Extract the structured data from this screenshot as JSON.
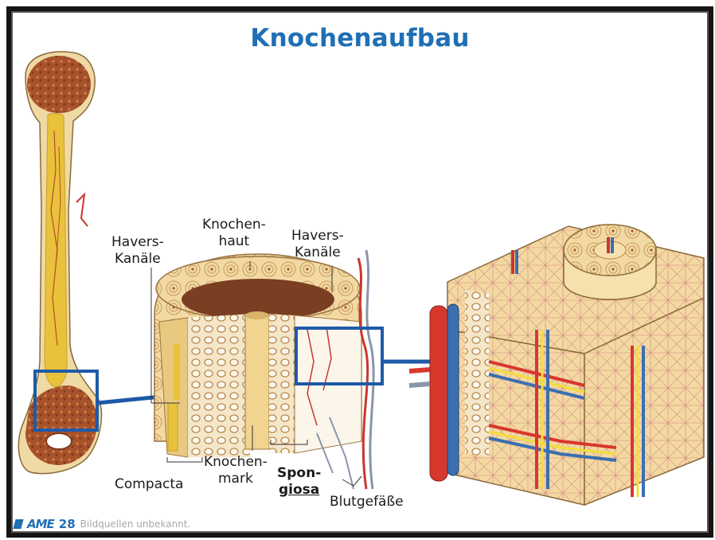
{
  "slide": {
    "title": "Knochenaufbau",
    "labels": {
      "havers_left_1": "Havers-",
      "havers_left_2": "Kanäle",
      "knochenhaut_1": "Knochen-",
      "knochenhaut_2": "haut",
      "havers_right_1": "Havers-",
      "havers_right_2": "Kanäle",
      "compacta": "Compacta",
      "knochenmark_1": "Knochen-",
      "knochenmark_2": "mark",
      "spongiosa_1": "Spon-",
      "spongiosa_2": "giosa",
      "blutgefaesse": "Blutgefäße"
    },
    "footer": {
      "logo_text": "AME",
      "logo_number": "28",
      "credit": "Bildquellen unbekannt."
    },
    "colors": {
      "title": "#1f6fb5",
      "highlight_box": "#1f5aa8",
      "bone": "#f1d9a0",
      "marrow": "#e8c23a",
      "artery": "#d8372e",
      "vein": "#3b6fb0"
    },
    "icons": [
      "ame-logo"
    ]
  }
}
